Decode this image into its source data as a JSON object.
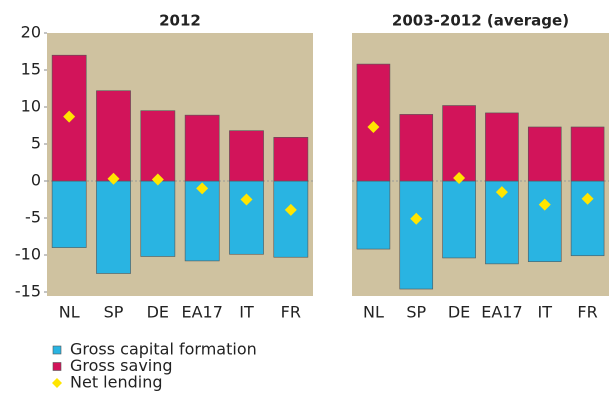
{
  "chart_data": [
    {
      "type": "bar",
      "title": "2012",
      "categories": [
        "NL",
        "SP",
        "DE",
        "EA17",
        "IT",
        "FR"
      ],
      "ylim": [
        -15,
        20
      ],
      "yticks": [
        -15,
        -10,
        -5,
        0,
        5,
        10,
        15,
        20
      ],
      "series": [
        {
          "name": "Gross capital formation",
          "type": "bar",
          "color": "#29b4e2",
          "values": [
            -9,
            -12.5,
            -10.2,
            -10.8,
            -9.9,
            -10.3
          ]
        },
        {
          "name": "Gross saving",
          "type": "bar",
          "color": "#d2145a",
          "values": [
            17,
            12.2,
            9.5,
            8.9,
            6.8,
            5.9
          ]
        },
        {
          "name": "Net lending",
          "type": "scatter",
          "color": "#ffe500",
          "values": [
            8.7,
            0.3,
            0.2,
            -1,
            -2.5,
            -3.9
          ]
        }
      ]
    },
    {
      "type": "bar",
      "title": "2003-2012 (average)",
      "categories": [
        "NL",
        "SP",
        "DE",
        "EA17",
        "IT",
        "FR"
      ],
      "ylim": [
        -15,
        20
      ],
      "series": [
        {
          "type": "bar",
          "color": "#29b4e2",
          "values": [
            -9.2,
            -14.6,
            -10.4,
            -11.2,
            -10.9,
            -10.1
          ]
        },
        {
          "type": "bar",
          "color": "#d2145a",
          "values": [
            15.8,
            9,
            10.2,
            9.2,
            7.3,
            7.3
          ]
        },
        {
          "type": "scatter",
          "color": "#ffe500",
          "values": [
            7.3,
            -5.1,
            0.4,
            -1.5,
            -3.2,
            -2.4
          ]
        }
      ]
    }
  ]
}
